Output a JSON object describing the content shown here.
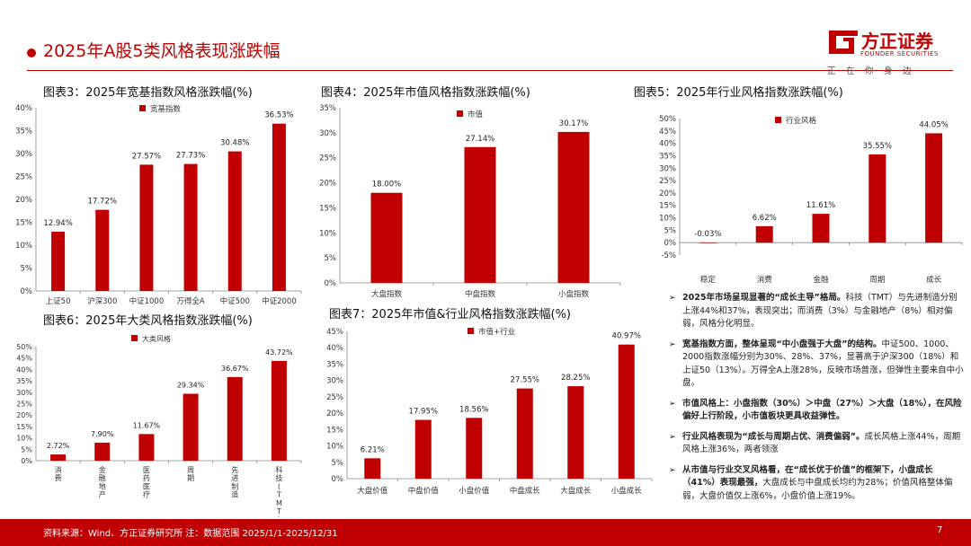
{
  "header": {
    "title": "2025年A股5类风格表现涨跌幅",
    "logo_name": "方正证券",
    "logo_english": "FOUNDER SECURITIES",
    "logo_slogan": "正在你身边"
  },
  "colors": {
    "accent": "#c00000",
    "bar": "#c00000"
  },
  "chart_data": [
    {
      "id": "fig3",
      "type": "bar",
      "title": "图表3：2025年宽基指数风格涨跌幅(%)",
      "legend": "宽基指数",
      "categories": [
        "上证50",
        "沪深300",
        "中证1000",
        "万得全A",
        "中证500",
        "中证2000"
      ],
      "values": [
        12.94,
        17.72,
        27.57,
        27.73,
        30.48,
        36.53
      ],
      "labels": [
        "12.94%",
        "17.72%",
        "27.57%",
        "27.73%",
        "30.48%",
        "36.53%"
      ],
      "yticks": [
        "0%",
        "5%",
        "10%",
        "15%",
        "20%",
        "25%",
        "30%",
        "35%",
        "40%"
      ],
      "ylim": [
        0,
        40
      ]
    },
    {
      "id": "fig4",
      "type": "bar",
      "title": "图表4：2025年市值风格指数涨跌幅(%)",
      "legend": "市值",
      "categories": [
        "大盘指数",
        "中盘指数",
        "小盘指数"
      ],
      "values": [
        18.0,
        27.14,
        30.17
      ],
      "labels": [
        "18.00%",
        "27.14%",
        "30.17%"
      ],
      "yticks": [
        "0%",
        "5%",
        "10%",
        "15%",
        "20%",
        "25%",
        "30%",
        "35%"
      ],
      "ylim": [
        0,
        35
      ]
    },
    {
      "id": "fig5",
      "type": "bar",
      "title": "图表5：2025年行业风格指数涨跌幅(%)",
      "legend": "行业风格",
      "categories": [
        "稳定",
        "消费",
        "金融",
        "周期",
        "成长"
      ],
      "values": [
        -0.03,
        6.62,
        11.61,
        35.55,
        44.05
      ],
      "labels": [
        "-0.03%",
        "6.62%",
        "11.61%",
        "35.55%",
        "44.05%"
      ],
      "yticks": [
        "-5%",
        "0%",
        "5%",
        "10%",
        "15%",
        "20%",
        "25%",
        "30%",
        "35%",
        "40%",
        "45%",
        "50%"
      ],
      "ylim": [
        -5,
        50
      ]
    },
    {
      "id": "fig6",
      "type": "bar",
      "title": "图表6：2025年大类风格指数涨跌幅(%)",
      "legend": "大类风格",
      "categories": [
        "消费",
        "金融地产",
        "医药医疗",
        "周期",
        "先进制造",
        "科技(TMT)"
      ],
      "values": [
        2.72,
        7.9,
        11.67,
        29.34,
        36.67,
        43.72
      ],
      "labels": [
        "2.72%",
        "7.90%",
        "11.67%",
        "29.34%",
        "36.67%",
        "43.72%"
      ],
      "yticks": [
        "0%",
        "5%",
        "10%",
        "15%",
        "20%",
        "25%",
        "30%",
        "35%",
        "40%",
        "45%",
        "50%"
      ],
      "ylim": [
        0,
        50
      ]
    },
    {
      "id": "fig7",
      "type": "bar",
      "title": "图表7：2025年市值&行业风格指数涨跌幅(%)",
      "legend": "市值+行业",
      "categories": [
        "大盘价值",
        "中盘价值",
        "小盘价值",
        "中盘成长",
        "大盘成长",
        "小盘成长"
      ],
      "values": [
        6.21,
        17.95,
        18.56,
        27.55,
        28.25,
        40.97
      ],
      "labels": [
        "6.21%",
        "17.95%",
        "18.56%",
        "27.55%",
        "28.25%",
        "40.97%"
      ],
      "yticks": [
        "0%",
        "5%",
        "10%",
        "15%",
        "20%",
        "25%",
        "30%",
        "35%",
        "40%",
        "45%"
      ],
      "ylim": [
        0,
        45
      ]
    }
  ],
  "bullets": [
    {
      "lead": "2025年市场呈现显著的“成长主导”格局。",
      "body": "科技（TMT）与先进制造分别上涨44%和37%，表现突出；而消费（3%）与金融地产（8%）相对偏弱，风格分化明显。"
    },
    {
      "lead": "宽基指数方面，整体呈现“中小盘强于大盘”的结构。",
      "body": "中证500、1000、2000指数涨幅分别为30%、28%、37%，显著高于沪深300（18%）和上证50（13%）。万得全A上涨28%，反映市场普涨，但弹性主要来自中小盘。"
    },
    {
      "lead": "市值风格上：小盘指数（30%）＞中盘（27%）＞大盘（18%），在风险偏好上行阶段，小市值板块更具收益弹性。",
      "body": ""
    },
    {
      "lead": "行业风格表现为“成长与周期占优、消费偏弱”。",
      "body": "成长风格上涨44%，周期风格上涨36%，两者领涨"
    },
    {
      "lead": "从市值与行业交叉风格看，在“成长优于价值”的框架下，小盘成长（41%）表现最强，",
      "body": "大盘成长与中盘成长均约为28%；价值风格整体偏弱，大盘价值仅上涨6%，小盘价值上涨19%。"
    }
  ],
  "footer": {
    "source": "资料来源：Wind、方正证券研究所  注：数据范围 2025/1/1-2025/12/31",
    "page": "7"
  }
}
